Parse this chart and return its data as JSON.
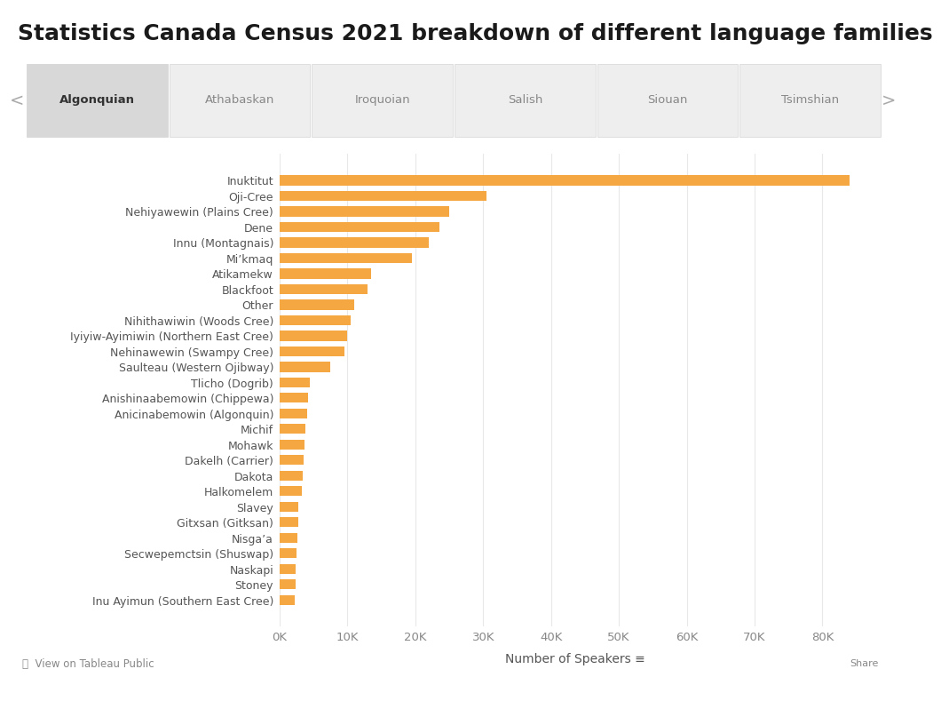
{
  "title": "Statistics Canada Census 2021 breakdown of different language families",
  "categories": [
    "Inuktitut",
    "Oji-Cree",
    "Nehiyawewin (Plains Cree)",
    "Dene",
    "Innu (Montagnais)",
    "Mi’kmaq",
    "Atikamekw",
    "Blackfoot",
    "Other",
    "Nihithawiwin (Woods Cree)",
    "Iyiyiw-Ayimiwin (Northern East Cree)",
    "Nehinawewin (Swampy Cree)",
    "Saulteau (Western Ojibway)",
    "Tlicho (Dogrib)",
    "Anishinaabemowin (Chippewa)",
    "Anicinabemowin (Algonquin)",
    "Michif",
    "Mohawk",
    "Dakelh (Carrier)",
    "Dakota",
    "Halkomelem",
    "Slavey",
    "Gitxsan (Gitksan)",
    "Nisga’a",
    "Secwepemctsin (Shuswap)",
    "Naskapi",
    "Stoney",
    "Inu Ayimun (Southern East Cree)"
  ],
  "values": [
    84000,
    30500,
    25000,
    23500,
    22000,
    19500,
    13500,
    13000,
    11000,
    10500,
    10000,
    9500,
    7500,
    4500,
    4200,
    4000,
    3800,
    3600,
    3500,
    3400,
    3300,
    2800,
    2700,
    2600,
    2500,
    2400,
    2300,
    2200
  ],
  "bar_color": "#F5A742",
  "background_color": "#ffffff",
  "xlabel": "Number of Speakers ≡",
  "grid_color": "#e8e8e8",
  "tab_labels": [
    "Algonquian",
    "Athabaskan",
    "Iroquoian",
    "Salish",
    "Siouan",
    "Tsimshian"
  ],
  "tab_active": 0,
  "tab_bg_active": "#d8d8d8",
  "tab_bg_inactive": "#eeeeee",
  "tab_area_bg": "#e5e5e5",
  "xlim_max": 87000,
  "x_tick_step": 10000,
  "title_fontsize": 18,
  "ylabel_fontsize": 9,
  "xlabel_fontsize": 10,
  "bar_height": 0.65
}
